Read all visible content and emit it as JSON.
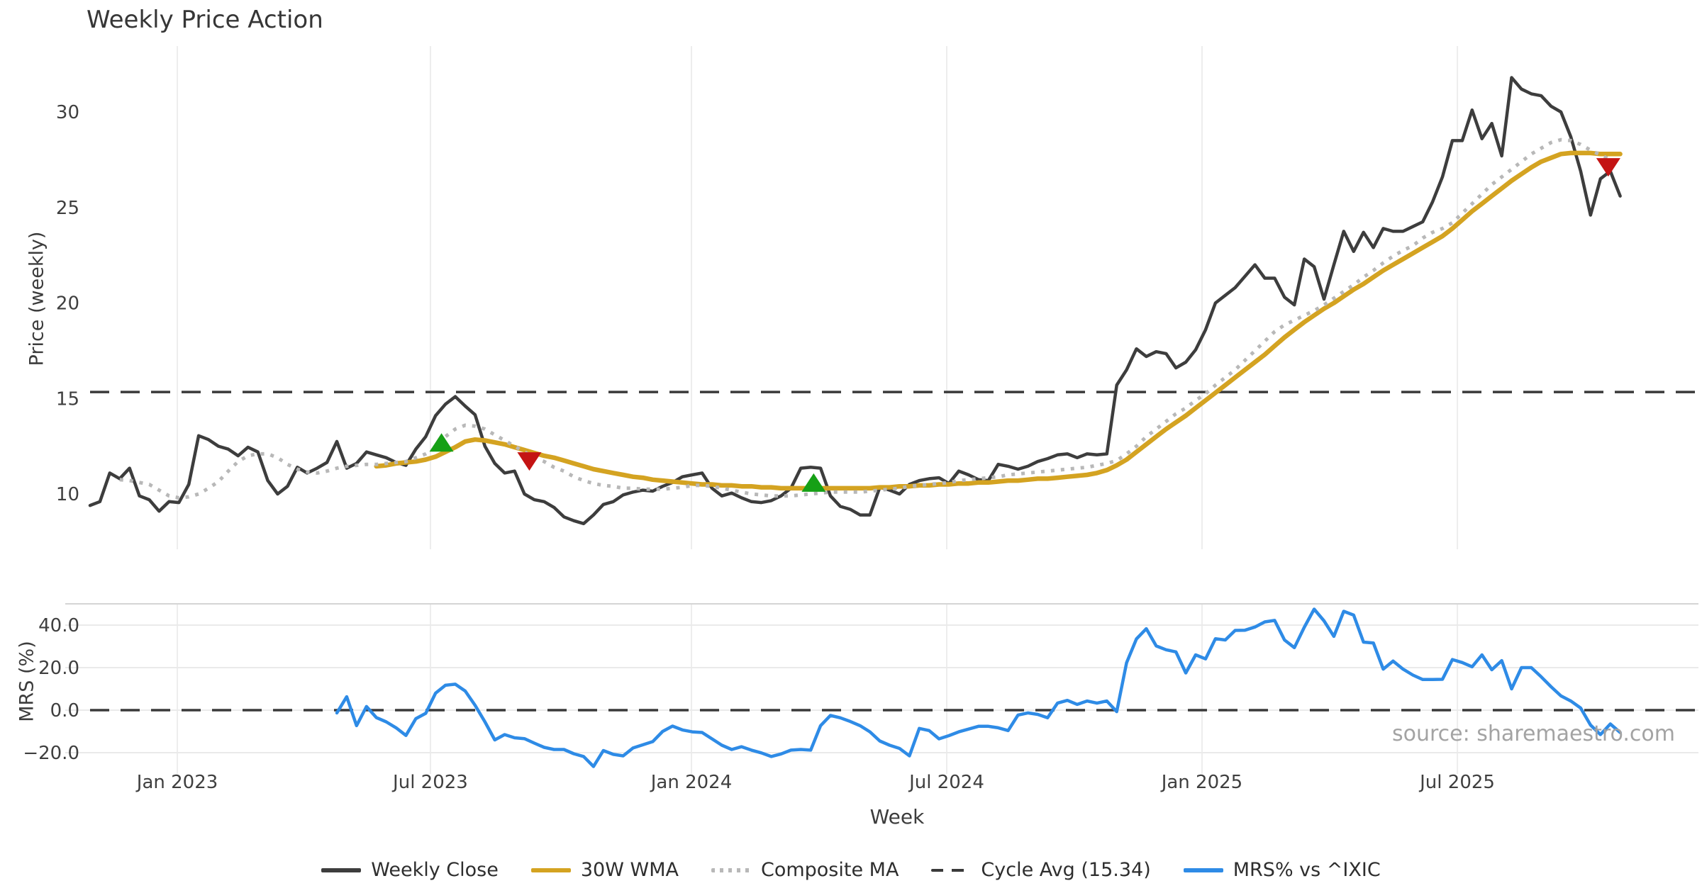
{
  "title": "Weekly Price Action",
  "source": "source: sharemaestro.com",
  "chart_data": {
    "type": "line",
    "title": "Weekly Price Action",
    "xlabel": "Week",
    "x_unit": "weekly, Nov 2022 - Oct 2025",
    "grid": "vertical gridlines on both subplots; horizontal gridlines on MRS subplot only",
    "legend_position": "bottom center, horizontal",
    "x_ticks": [
      {
        "label": "Jan 2023",
        "week": 8.84
      },
      {
        "label": "Jul 2023",
        "week": 34.48
      },
      {
        "label": "Jan 2024",
        "week": 60.92
      },
      {
        "label": "Jul 2024",
        "week": 86.78
      },
      {
        "label": "Jan 2025",
        "week": 112.64
      },
      {
        "label": "Jul 2025",
        "week": 138.51
      }
    ],
    "price_axis": {
      "label": "Price (weekly)",
      "ticks": [
        {
          "label": "10",
          "value": 10
        },
        {
          "label": "15",
          "value": 15
        },
        {
          "label": "20",
          "value": 20
        },
        {
          "label": "25",
          "value": 25
        },
        {
          "label": "30",
          "value": 30
        }
      ],
      "range": [
        7.1,
        33.4
      ]
    },
    "mrs_axis": {
      "label": "MRS (%)",
      "ticks": [
        {
          "label": "−20.0",
          "value": -20
        },
        {
          "label": "0.0",
          "value": 0
        },
        {
          "label": "20.0",
          "value": 20
        },
        {
          "label": "40.0",
          "value": 40
        }
      ],
      "range": [
        -30,
        50
      ]
    },
    "cycle_avg": 15.34,
    "mrs_zero_line": 0,
    "series": [
      {
        "name": "Weekly Close",
        "axis": "price",
        "color": "#3d3d3d",
        "style": "solid",
        "width": 4.5,
        "start_week": 0,
        "values": [
          9.4,
          9.6,
          11.1,
          10.8,
          11.35,
          9.9,
          9.7,
          9.1,
          9.6,
          9.55,
          10.5,
          13.05,
          12.85,
          12.5,
          12.35,
          12.0,
          12.45,
          12.2,
          10.7,
          10.0,
          10.4,
          11.4,
          11.1,
          11.35,
          11.65,
          12.75,
          11.35,
          11.6,
          12.2,
          12.05,
          11.9,
          11.65,
          11.5,
          12.35,
          13.0,
          14.1,
          14.7,
          15.1,
          14.6,
          14.15,
          12.5,
          11.6,
          11.1,
          11.2,
          10.0,
          9.7,
          9.6,
          9.3,
          8.8,
          8.6,
          8.45,
          8.9,
          9.45,
          9.6,
          9.95,
          10.1,
          10.2,
          10.15,
          10.4,
          10.6,
          10.9,
          11.0,
          11.1,
          10.3,
          9.9,
          10.05,
          9.8,
          9.6,
          9.55,
          9.65,
          9.9,
          10.3,
          11.35,
          11.4,
          11.35,
          9.9,
          9.35,
          9.2,
          8.9,
          8.9,
          10.35,
          10.2,
          10.0,
          10.5,
          10.7,
          10.8,
          10.85,
          10.55,
          11.2,
          11.0,
          10.75,
          10.7,
          11.55,
          11.45,
          11.3,
          11.45,
          11.7,
          11.85,
          12.05,
          12.1,
          11.9,
          12.1,
          12.05,
          12.1,
          15.7,
          16.5,
          17.6,
          17.2,
          17.45,
          17.35,
          16.6,
          16.9,
          17.55,
          18.6,
          20.0,
          20.4,
          20.8,
          21.4,
          22.0,
          21.3,
          21.3,
          20.3,
          19.9,
          22.3,
          21.9,
          20.2,
          22.0,
          23.75,
          22.7,
          23.7,
          22.9,
          23.9,
          23.75,
          23.75,
          24.0,
          24.25,
          25.3,
          26.6,
          28.5,
          28.5,
          30.1,
          28.6,
          29.4,
          27.7,
          31.8,
          31.2,
          30.95,
          30.85,
          30.3,
          30.0,
          28.7,
          26.9,
          24.6,
          26.5,
          26.9,
          25.6
        ]
      },
      {
        "name": "30W WMA",
        "axis": "price",
        "color": "#d4a321",
        "style": "solid",
        "width": 6.5,
        "start_week": 29,
        "values": [
          11.45,
          11.5,
          11.6,
          11.65,
          11.7,
          11.8,
          11.95,
          12.2,
          12.45,
          12.75,
          12.85,
          12.8,
          12.7,
          12.6,
          12.45,
          12.3,
          12.15,
          12.0,
          11.9,
          11.75,
          11.6,
          11.45,
          11.3,
          11.2,
          11.1,
          11.0,
          10.9,
          10.85,
          10.75,
          10.7,
          10.65,
          10.6,
          10.55,
          10.5,
          10.5,
          10.45,
          10.45,
          10.4,
          10.4,
          10.35,
          10.35,
          10.3,
          10.3,
          10.3,
          10.3,
          10.3,
          10.3,
          10.3,
          10.3,
          10.3,
          10.3,
          10.35,
          10.35,
          10.4,
          10.4,
          10.45,
          10.45,
          10.5,
          10.5,
          10.55,
          10.55,
          10.6,
          10.6,
          10.65,
          10.7,
          10.7,
          10.75,
          10.8,
          10.8,
          10.85,
          10.9,
          10.95,
          11.0,
          11.1,
          11.25,
          11.5,
          11.8,
          12.2,
          12.6,
          13.0,
          13.4,
          13.75,
          14.1,
          14.5,
          14.9,
          15.3,
          15.7,
          16.1,
          16.5,
          16.9,
          17.3,
          17.75,
          18.2,
          18.6,
          19.0,
          19.35,
          19.7,
          20.0,
          20.35,
          20.7,
          21.0,
          21.35,
          21.7,
          22.0,
          22.3,
          22.6,
          22.9,
          23.2,
          23.5,
          23.9,
          24.35,
          24.8,
          25.2,
          25.6,
          26.0,
          26.4,
          26.75,
          27.1,
          27.4,
          27.6,
          27.8,
          27.85,
          27.85,
          27.85,
          27.8,
          27.8,
          27.8
        ]
      },
      {
        "name": "Composite MA",
        "axis": "price",
        "color": "#b8b8b8",
        "style": "dotted",
        "width": 5,
        "start_week": 3,
        "values": [
          10.75,
          10.7,
          10.6,
          10.5,
          10.2,
          9.9,
          9.8,
          9.85,
          10.0,
          10.3,
          10.65,
          11.2,
          11.7,
          12.0,
          12.1,
          12.1,
          11.9,
          11.55,
          11.3,
          11.15,
          11.1,
          11.2,
          11.35,
          11.45,
          11.5,
          11.55,
          11.55,
          11.6,
          11.65,
          11.7,
          11.9,
          12.1,
          12.4,
          13.0,
          13.4,
          13.6,
          13.55,
          13.4,
          13.1,
          12.8,
          12.5,
          12.2,
          11.9,
          11.7,
          11.4,
          11.2,
          10.9,
          10.7,
          10.55,
          10.45,
          10.4,
          10.3,
          10.3,
          10.25,
          10.25,
          10.25,
          10.3,
          10.35,
          10.45,
          10.45,
          10.4,
          10.3,
          10.2,
          10.1,
          10.0,
          9.95,
          9.9,
          9.9,
          9.9,
          9.95,
          10.0,
          10.05,
          10.1,
          10.1,
          10.1,
          10.1,
          10.15,
          10.2,
          10.25,
          10.3,
          10.4,
          10.45,
          10.5,
          10.55,
          10.6,
          10.7,
          10.75,
          10.8,
          10.85,
          10.9,
          11.0,
          11.05,
          11.1,
          11.15,
          11.2,
          11.25,
          11.3,
          11.35,
          11.4,
          11.5,
          11.6,
          11.75,
          12.1,
          12.5,
          13.0,
          13.4,
          13.8,
          14.2,
          14.5,
          14.9,
          15.25,
          15.7,
          16.1,
          16.5,
          17.0,
          17.5,
          18.0,
          18.5,
          18.85,
          19.1,
          19.35,
          19.6,
          19.9,
          20.25,
          20.6,
          20.95,
          21.35,
          21.7,
          22.1,
          22.45,
          22.75,
          23.0,
          23.4,
          23.7,
          23.9,
          24.2,
          24.7,
          25.2,
          25.7,
          26.2,
          26.6,
          27.0,
          27.4,
          27.8,
          28.1,
          28.4,
          28.55,
          28.5,
          28.3,
          28.0,
          27.75,
          27.5,
          27.3
        ]
      },
      {
        "name": "MRS% vs ^IXIC",
        "axis": "mrs",
        "color": "#2e8be6",
        "style": "solid",
        "width": 4.5,
        "start_week": 25,
        "values": [
          -1.3,
          6.3,
          -7.3,
          1.7,
          -3.5,
          -5.5,
          -8.3,
          -11.9,
          -4.0,
          -1.5,
          8.0,
          11.7,
          12.2,
          9.0,
          2.3,
          -5.5,
          -14.0,
          -11.5,
          -13.0,
          -13.4,
          -15.5,
          -17.5,
          -18.5,
          -18.5,
          -20.5,
          -21.8,
          -26.5,
          -19.0,
          -20.8,
          -21.5,
          -17.8,
          -16.3,
          -14.8,
          -10.0,
          -7.5,
          -9.3,
          -10.2,
          -10.5,
          -13.5,
          -16.5,
          -18.5,
          -17.2,
          -18.8,
          -20.1,
          -21.8,
          -20.6,
          -18.8,
          -18.5,
          -18.8,
          -7.3,
          -2.5,
          -3.6,
          -5.3,
          -7.3,
          -10.2,
          -14.5,
          -16.5,
          -18.0,
          -21.5,
          -8.6,
          -9.6,
          -13.5,
          -12.0,
          -10.2,
          -8.9,
          -7.6,
          -7.6,
          -8.3,
          -9.6,
          -2.3,
          -1.3,
          -2.0,
          -3.6,
          3.3,
          4.6,
          2.7,
          4.3,
          3.3,
          4.3,
          -0.7,
          22.3,
          33.5,
          38.3,
          30.2,
          28.4,
          27.4,
          17.5,
          26.0,
          24.1,
          33.6,
          33.0,
          37.5,
          37.6,
          39.1,
          41.5,
          42.2,
          33.0,
          29.4,
          39.0,
          47.5,
          42.0,
          34.7,
          46.5,
          44.7,
          32.0,
          31.6,
          19.3,
          23.1,
          19.3,
          16.5,
          14.4,
          14.4,
          14.5,
          23.8,
          22.4,
          20.4,
          26.0,
          19.0,
          23.3,
          10.0,
          20.0,
          20.0,
          15.7,
          11.0,
          6.7,
          4.3,
          1.0,
          -7.0,
          -11.5,
          -6.5,
          -10.5
        ]
      }
    ],
    "markers": [
      {
        "type": "buy",
        "shape": "triangle-up",
        "color": "#16a016",
        "week": 35.6,
        "price": 12.7
      },
      {
        "type": "sell",
        "shape": "triangle-down",
        "color": "#c41414",
        "week": 44.5,
        "price": 11.7
      },
      {
        "type": "buy",
        "shape": "triangle-up",
        "color": "#16a016",
        "week": 73.3,
        "price": 10.6
      },
      {
        "type": "sell",
        "shape": "triangle-down",
        "color": "#c41414",
        "week": 153.8,
        "price": 27.1
      }
    ],
    "legend": [
      {
        "label": "Weekly Close",
        "color": "#3d3d3d",
        "style": "solid"
      },
      {
        "label": "30W WMA",
        "color": "#d4a321",
        "style": "solid"
      },
      {
        "label": "Composite MA",
        "color": "#b8b8b8",
        "style": "dotted"
      },
      {
        "label": "Cycle Avg (15.34)",
        "color": "#3a3a3a",
        "style": "dashed"
      },
      {
        "label": "MRS% vs ^IXIC",
        "color": "#2e8be6",
        "style": "solid"
      }
    ]
  }
}
